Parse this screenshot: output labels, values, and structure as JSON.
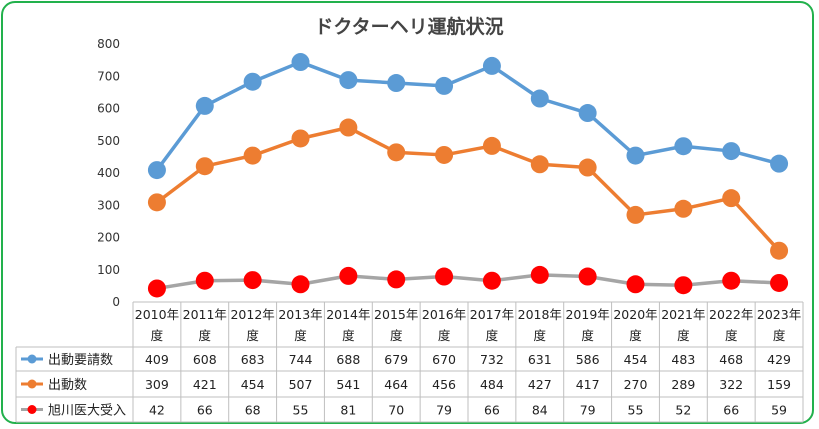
{
  "chart_data": {
    "type": "line",
    "title": "ドクターヘリ運航状況",
    "categories": [
      "2010年度",
      "2011年度",
      "2012年度",
      "2013年度",
      "2014年度",
      "2015年度",
      "2016年度",
      "2017年度",
      "2018年度",
      "2019年度",
      "2020年度",
      "2021年度",
      "2022年度",
      "2023年度"
    ],
    "category_lines": [
      [
        "2010年",
        "度"
      ],
      [
        "2011年",
        "度"
      ],
      [
        "2012年",
        "度"
      ],
      [
        "2013年",
        "度"
      ],
      [
        "2014年",
        "度"
      ],
      [
        "2015年",
        "度"
      ],
      [
        "2016年",
        "度"
      ],
      [
        "2017年",
        "度"
      ],
      [
        "2018年",
        "度"
      ],
      [
        "2019年",
        "度"
      ],
      [
        "2020年",
        "度"
      ],
      [
        "2021年",
        "度"
      ],
      [
        "2022年",
        "度"
      ],
      [
        "2023年",
        "度"
      ]
    ],
    "series": [
      {
        "name": "出動要請数",
        "color": "#5b9bd5",
        "marker_color": "#5b9bd5",
        "values": [
          409,
          608,
          683,
          744,
          688,
          679,
          670,
          732,
          631,
          586,
          454,
          483,
          468,
          429
        ]
      },
      {
        "name": "出動数",
        "color": "#ed7d31",
        "marker_color": "#ed7d31",
        "values": [
          309,
          421,
          454,
          507,
          541,
          464,
          456,
          484,
          427,
          417,
          270,
          289,
          322,
          159
        ]
      },
      {
        "name": "旭川医大受入",
        "color": "#a5a5a5",
        "marker_color": "#ff0000",
        "values": [
          42,
          66,
          68,
          55,
          81,
          70,
          79,
          66,
          84,
          79,
          55,
          52,
          66,
          59
        ]
      }
    ],
    "ylim": [
      0,
      800
    ],
    "yticks": [
      0,
      100,
      200,
      300,
      400,
      500,
      600,
      700,
      800
    ],
    "grid": false,
    "legend": "data-table"
  },
  "colors": {
    "frame": "#22b14c",
    "grid_line": "#bfbfbf"
  }
}
